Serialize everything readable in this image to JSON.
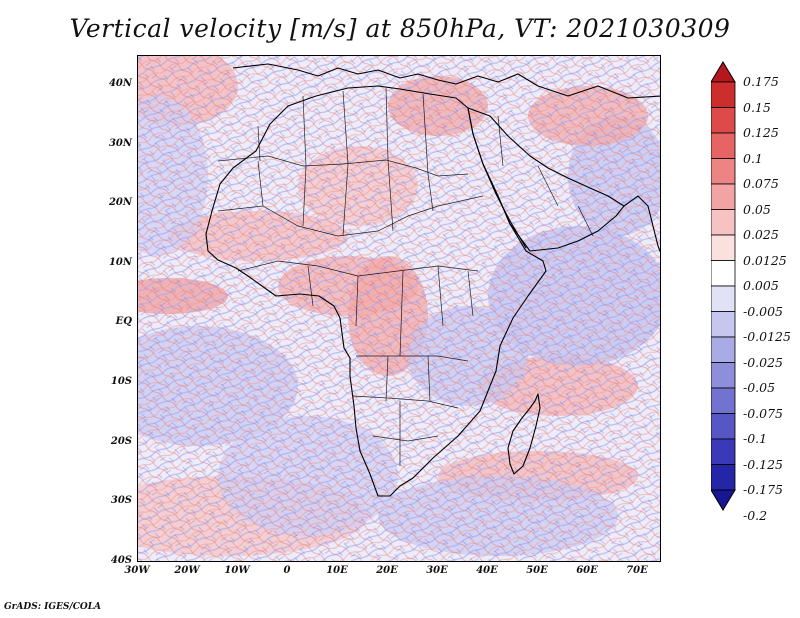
{
  "title": "Vertical velocity [m/s] at 850hPa, VT: 2021030309",
  "credit": "GrADS: IGES/COLA",
  "map": {
    "region": "Africa",
    "projection": "lat-lon",
    "lon_range": [
      -30,
      75
    ],
    "lat_range": [
      -40,
      45
    ],
    "lat_labels": [
      "40N",
      "30N",
      "20N",
      "10N",
      "EQ",
      "10S",
      "20S",
      "30S",
      "40S"
    ],
    "lon_labels": [
      "30W",
      "20W",
      "10W",
      "0",
      "10E",
      "20E",
      "30E",
      "40E",
      "50E",
      "60E",
      "70E"
    ]
  },
  "colorbar": {
    "levels": [
      "0.175",
      "0.15",
      "0.125",
      "0.1",
      "0.075",
      "0.05",
      "0.025",
      "0.0125",
      "0.005",
      "-0.005",
      "-0.0125",
      "-0.025",
      "-0.05",
      "-0.075",
      "-0.1",
      "-0.125",
      "-0.175",
      "-0.2"
    ],
    "colors": [
      "#b5171d",
      "#cc2e2e",
      "#dc4a4a",
      "#e56565",
      "#ec8484",
      "#f2a3a3",
      "#f7c2c2",
      "#fbe0e0",
      "#ffffff",
      "#e2e2f7",
      "#c6c6ef",
      "#aaaae5",
      "#8e8edb",
      "#7272d0",
      "#5656c5",
      "#3a3ab8",
      "#2525a8",
      "#171794"
    ]
  }
}
